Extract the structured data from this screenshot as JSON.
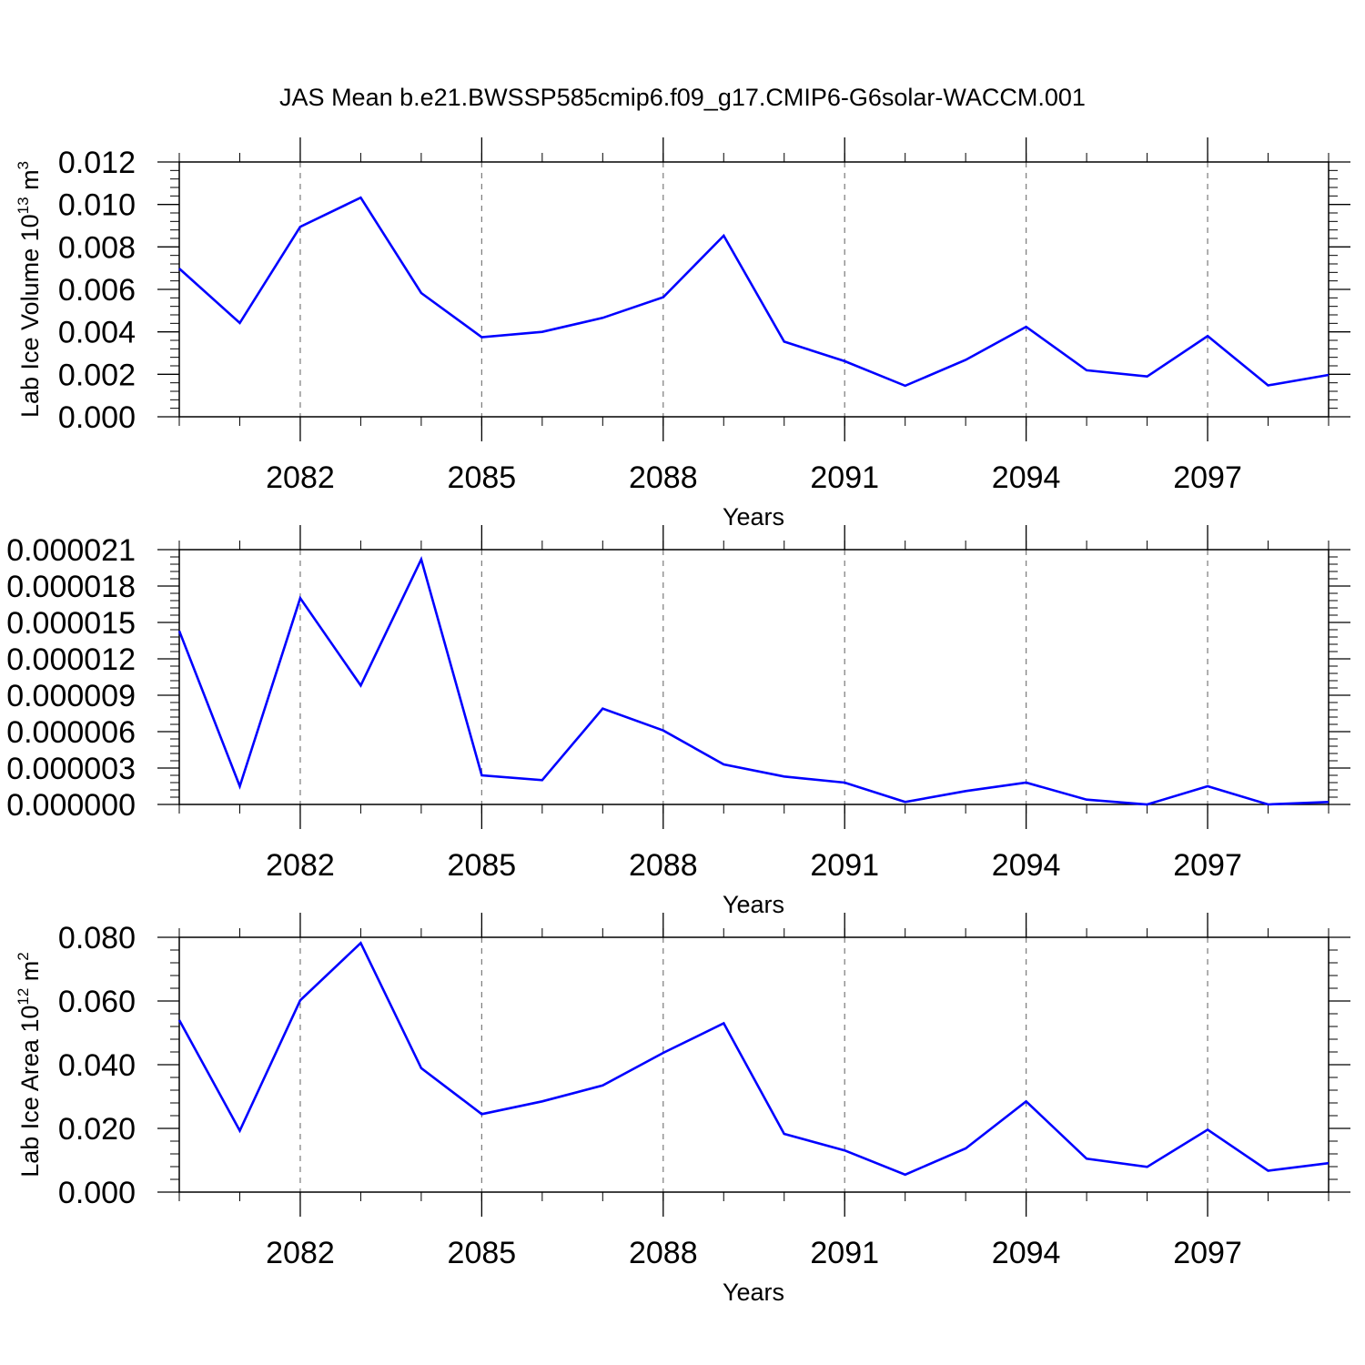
{
  "title": "JAS Mean b.e21.BWSSP585cmip6.f09_g17.CMIP6-G6solar-WACCM.001",
  "chart_data": [
    {
      "type": "line",
      "title": "",
      "xlabel": "Years",
      "ylabel": {
        "main": "Lab Ice Volume 10",
        "sup": "13",
        "unit": " m",
        "unit_sup": "3"
      },
      "xlim": [
        2080,
        2099
      ],
      "ylim": [
        0,
        0.012
      ],
      "x_ticks": [
        2082,
        2085,
        2088,
        2091,
        2094,
        2097
      ],
      "x_tick_labels": [
        "2082",
        "2085",
        "2088",
        "2091",
        "2094",
        "2097"
      ],
      "y_ticks": [
        0,
        0.002,
        0.004,
        0.006,
        0.008,
        0.01,
        0.012
      ],
      "y_tick_labels": [
        "0.000",
        "0.002",
        "0.004",
        "0.006",
        "0.008",
        "0.010",
        "0.012"
      ],
      "grid": "vertical dashed at major x ticks",
      "color": "#0000ff",
      "x": [
        2080,
        2081,
        2082,
        2083,
        2084,
        2085,
        2086,
        2087,
        2088,
        2089,
        2090,
        2091,
        2092,
        2093,
        2094,
        2095,
        2096,
        2097,
        2098,
        2099
      ],
      "values": [
        0.00698,
        0.00442,
        0.00895,
        0.01032,
        0.00583,
        0.00375,
        0.004,
        0.00466,
        0.00563,
        0.00853,
        0.00354,
        0.00262,
        0.00146,
        0.00268,
        0.00424,
        0.00219,
        0.0019,
        0.0038,
        0.00148,
        0.00197
      ]
    },
    {
      "type": "line",
      "title": "",
      "xlabel": "Years",
      "ylabel": {
        "main": "",
        "sup": "",
        "unit": "",
        "unit_sup": ""
      },
      "xlim": [
        2080,
        2099
      ],
      "ylim": [
        0,
        2.1e-05
      ],
      "x_ticks": [
        2082,
        2085,
        2088,
        2091,
        2094,
        2097
      ],
      "x_tick_labels": [
        "2082",
        "2085",
        "2088",
        "2091",
        "2094",
        "2097"
      ],
      "y_ticks": [
        0,
        3e-06,
        6e-06,
        9e-06,
        1.2e-05,
        1.5e-05,
        1.8e-05,
        2.1e-05
      ],
      "y_tick_labels": [
        "0.000000",
        "0.000003",
        "0.000006",
        "0.000009",
        "0.000012",
        "0.000015",
        "0.000018",
        "0.000021"
      ],
      "grid": "vertical dashed at major x ticks",
      "color": "#0000ff",
      "x": [
        2080,
        2081,
        2082,
        2083,
        2084,
        2085,
        2086,
        2087,
        2088,
        2089,
        2090,
        2091,
        2092,
        2093,
        2094,
        2095,
        2096,
        2097,
        2098,
        2099
      ],
      "values": [
        1.43e-05,
        1.5e-06,
        1.7e-05,
        9.8e-06,
        2.02e-05,
        2.4e-06,
        2e-06,
        7.9e-06,
        6.1e-06,
        3.3e-06,
        2.3e-06,
        1.8e-06,
        2e-07,
        1.1e-06,
        1.8e-06,
        4e-07,
        0.0,
        1.5e-06,
        0.0,
        2e-07
      ]
    },
    {
      "type": "line",
      "title": "",
      "xlabel": "Years",
      "ylabel": {
        "main": "Lab Ice Area 10",
        "sup": "12",
        "unit": " m",
        "unit_sup": "2"
      },
      "xlim": [
        2080,
        2099
      ],
      "ylim": [
        0,
        0.08
      ],
      "x_ticks": [
        2082,
        2085,
        2088,
        2091,
        2094,
        2097
      ],
      "x_tick_labels": [
        "2082",
        "2085",
        "2088",
        "2091",
        "2094",
        "2097"
      ],
      "y_ticks": [
        0,
        0.02,
        0.04,
        0.06,
        0.08
      ],
      "y_tick_labels": [
        "0.000",
        "0.020",
        "0.040",
        "0.060",
        "0.080"
      ],
      "grid": "vertical dashed at major x ticks",
      "color": "#0000ff",
      "x": [
        2080,
        2081,
        2082,
        2083,
        2084,
        2085,
        2086,
        2087,
        2088,
        2089,
        2090,
        2091,
        2092,
        2093,
        2094,
        2095,
        2096,
        2097,
        2098,
        2099
      ],
      "values": [
        0.054,
        0.0193,
        0.0602,
        0.0782,
        0.0389,
        0.0245,
        0.0285,
        0.0335,
        0.0437,
        0.053,
        0.0183,
        0.0131,
        0.0055,
        0.0137,
        0.0285,
        0.0105,
        0.0079,
        0.0196,
        0.0067,
        0.0091
      ]
    }
  ]
}
